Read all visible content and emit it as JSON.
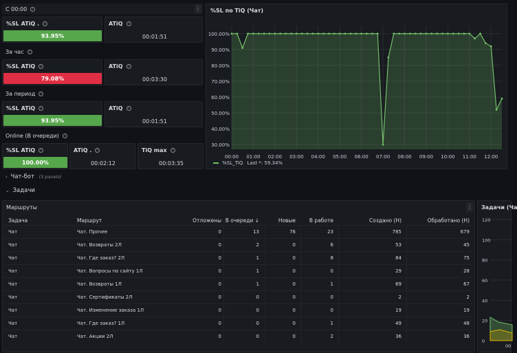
{
  "top_panel": {
    "title": "С 00:00"
  },
  "stat_blocks": [
    {
      "section": "",
      "sl_title": "%SL ATiQ .",
      "sl_value": "93.95%",
      "sl_color": "#56a64b",
      "atiq_title": "ATiQ",
      "atiq_value": "00:01:51"
    },
    {
      "section": "За час",
      "sl_title": "%SL ATiQ",
      "sl_value": "79.08%",
      "sl_color": "#e02f44",
      "atiq_title": "ATiQ",
      "atiq_value": "00:03:30"
    },
    {
      "section": "За период",
      "sl_title": "%SL ATiQ",
      "sl_value": "93.95%",
      "sl_color": "#56a64b",
      "atiq_title": "ATiQ",
      "atiq_value": "00:01:51"
    }
  ],
  "online": {
    "section": "Online (В очереди)",
    "sl_title": "%SL ATiQ",
    "sl_value": "100.00%",
    "sl_color": "#56a64b",
    "atiq_title": "ATiQ .",
    "atiq_value": "00:02:12",
    "tiq_title": "TiQ max",
    "tiq_value": "00:03:35"
  },
  "chart_panel": {
    "title": "%SL по TiQ (Чат)",
    "legend_label": "%SL_TiQ",
    "legend_last": "Last *: 59.34%"
  },
  "chart_data": {
    "type": "line",
    "yticks": [
      "100.00%",
      "90.00%",
      "80.00%",
      "70.00%",
      "60.00%",
      "50.00%",
      "40.00%",
      "30.00%"
    ],
    "xticks": [
      "00:00",
      "01:00",
      "02:00",
      "03:00",
      "04:00",
      "05:00",
      "06:00",
      "07:00",
      "08:00",
      "09:00",
      "10:00",
      "11:00",
      "12:00"
    ],
    "ylim": [
      27,
      103
    ],
    "xlim": [
      0,
      12.5
    ],
    "series": [
      {
        "name": "%SL_TiQ",
        "color": "#73bf69",
        "x": [
          0,
          0.25,
          0.5,
          0.75,
          1,
          1.25,
          1.5,
          1.75,
          2,
          2.25,
          2.5,
          2.75,
          3,
          3.25,
          3.5,
          3.75,
          4,
          4.25,
          4.5,
          4.75,
          5,
          5.25,
          5.5,
          5.75,
          6,
          6.25,
          6.5,
          6.75,
          7,
          7.25,
          7.5,
          7.75,
          8,
          8.25,
          8.5,
          8.75,
          9,
          9.25,
          9.5,
          9.75,
          10,
          10.25,
          10.5,
          10.75,
          11,
          11.25,
          11.5,
          11.75,
          12,
          12.25,
          12.5
        ],
        "values": [
          100,
          100,
          91,
          100,
          100,
          100,
          100,
          100,
          100,
          100,
          100,
          100,
          100,
          100,
          100,
          100,
          100,
          100,
          100,
          100,
          100,
          100,
          100,
          100,
          100,
          100,
          100,
          100,
          30,
          85,
          100,
          100,
          100,
          100,
          100,
          100,
          100,
          100,
          100,
          100,
          100,
          100,
          100,
          100,
          100,
          97,
          100,
          94,
          92,
          52,
          59
        ]
      }
    ],
    "grid": true,
    "legend": "bottom"
  },
  "rows": {
    "chatbot": {
      "label": "Чат-бот",
      "note": "(3 panels)"
    },
    "tasks": {
      "label": "Задачи"
    }
  },
  "table_panel": {
    "title": "Маршруты",
    "columns": [
      "Задача",
      "Маршрут",
      "Отложены",
      "В очереди ↓",
      "Новые",
      "В работе",
      "Создано (Н)",
      "Обработано (Н)"
    ],
    "rows": [
      [
        "Чат",
        "Чат. Прочее",
        "0",
        "13",
        "76",
        "23",
        "785",
        "679"
      ],
      [
        "Чат",
        "Чат. Возвраты 2Л",
        "0",
        "2",
        "0",
        "6",
        "53",
        "45"
      ],
      [
        "Чат",
        "Чат. Где заказ? 2Л",
        "0",
        "1",
        "0",
        "8",
        "84",
        "75"
      ],
      [
        "Чат",
        "Чат. Вопросы по сайту 1Л",
        "0",
        "1",
        "0",
        "0",
        "29",
        "28"
      ],
      [
        "Чат",
        "Чат. Возвраты 1Л",
        "0",
        "1",
        "0",
        "1",
        "69",
        "67"
      ],
      [
        "Чат",
        "Чат. Сертификаты 2Л",
        "0",
        "0",
        "0",
        "0",
        "2",
        "2"
      ],
      [
        "Чат",
        "Чат. Изменение заказа 1Л",
        "0",
        "0",
        "0",
        "0",
        "19",
        "19"
      ],
      [
        "Чат",
        "Чат. Где заказ? 1Л",
        "0",
        "0",
        "0",
        "1",
        "49",
        "48"
      ],
      [
        "Чат",
        "Чат. Акции 2Л",
        "0",
        "0",
        "0",
        "2",
        "36",
        "36"
      ]
    ]
  },
  "right_panel": {
    "title": "Задачи (Ча",
    "yticks": [
      "120",
      "100",
      "80",
      "60",
      "40",
      "20",
      "0"
    ],
    "xtick": "00"
  }
}
